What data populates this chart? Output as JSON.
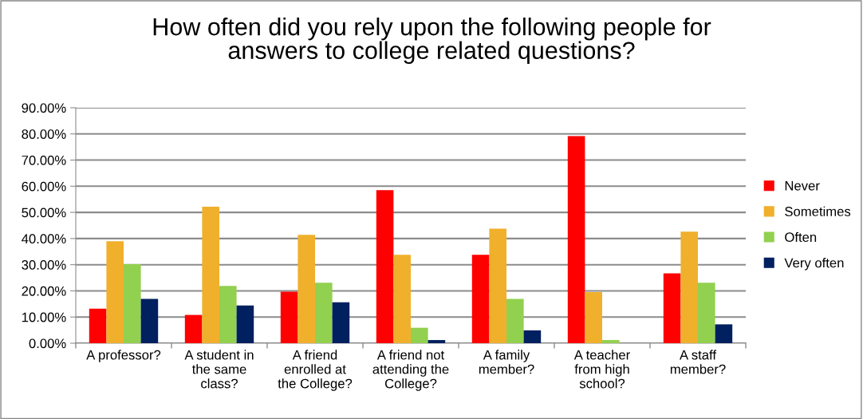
{
  "chart_data": {
    "type": "bar",
    "title": "How often did you rely upon the following people for\nanswers to college related questions?",
    "categories": [
      "A professor?",
      "A student in\nthe same\nclass?",
      "A friend\nenrolled at\nthe College?",
      "A friend not\nattending the\nCollege?",
      "A family\nmember?",
      "A teacher\nfrom high\nschool?",
      "A staff\nmember?"
    ],
    "series": [
      {
        "name": "Never",
        "color": "#ff0000",
        "values": [
          13.2,
          10.8,
          19.7,
          58.5,
          33.8,
          79.2,
          26.7
        ]
      },
      {
        "name": "Sometimes",
        "color": "#f0b02c",
        "values": [
          39.0,
          52.2,
          41.4,
          33.8,
          43.8,
          19.5,
          42.6
        ]
      },
      {
        "name": "Often",
        "color": "#92d050",
        "values": [
          30.2,
          21.9,
          23.1,
          5.9,
          16.9,
          1.2,
          23.1
        ]
      },
      {
        "name": "Very often",
        "color": "#002060",
        "values": [
          16.9,
          14.4,
          15.6,
          1.2,
          4.9,
          null,
          7.2
        ]
      }
    ],
    "ylim": [
      0,
      90
    ],
    "yticks": [
      {
        "value": 0,
        "label": "0.00%"
      },
      {
        "value": 10,
        "label": "10.00%"
      },
      {
        "value": 20,
        "label": "20.00%"
      },
      {
        "value": 30,
        "label": "30.00%"
      },
      {
        "value": 40,
        "label": "40.00%"
      },
      {
        "value": 50,
        "label": "50.00%"
      },
      {
        "value": 60,
        "label": "60.00%"
      },
      {
        "value": 70,
        "label": "70.00%"
      },
      {
        "value": 80,
        "label": "80.00%"
      },
      {
        "value": 90,
        "label": "90.00%"
      }
    ],
    "grid": "y",
    "legend": "right"
  }
}
